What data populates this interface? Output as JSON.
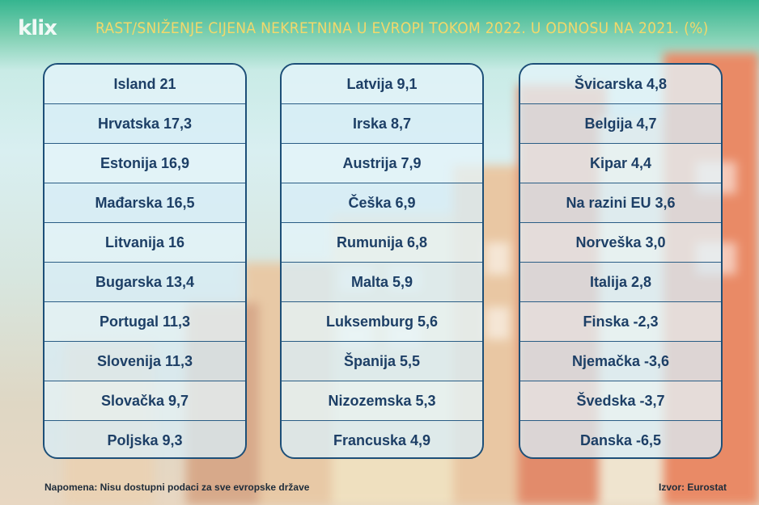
{
  "logo": "klix",
  "title": "RAST/SNIŽENJE CIJENA NEKRETNINA U EVROPI TOKOM 2022. U ODNOSU NA 2021. (%)",
  "columns": [
    [
      "Island 21",
      "Hrvatska 17,3",
      "Estonija 16,9",
      "Mađarska 16,5",
      "Litvanija 16",
      "Bugarska 13,4",
      "Portugal 11,3",
      "Slovenija 11,3",
      "Slovačka 9,7",
      "Poljska 9,3"
    ],
    [
      "Latvija 9,1",
      "Irska 8,7",
      "Austrija 7,9",
      "Češka 6,9",
      "Rumunija 6,8",
      "Malta 5,9",
      "Luksemburg 5,6",
      "Španija 5,5",
      "Nizozemska 5,3",
      "Francuska 4,9"
    ],
    [
      "Švicarska 4,8",
      "Belgija 4,7",
      "Kipar 4,4",
      "Na razini EU 3,6",
      "Norveška 3,0",
      "Italija 2,8",
      "Finska -2,3",
      "Njemačka -3,6",
      "Švedska -3,7",
      "Danska -6,5"
    ]
  ],
  "footer": {
    "note": "Napomena: Nisu dostupni podaci za sve evropske države",
    "source": "Izvor: Eurostat"
  }
}
